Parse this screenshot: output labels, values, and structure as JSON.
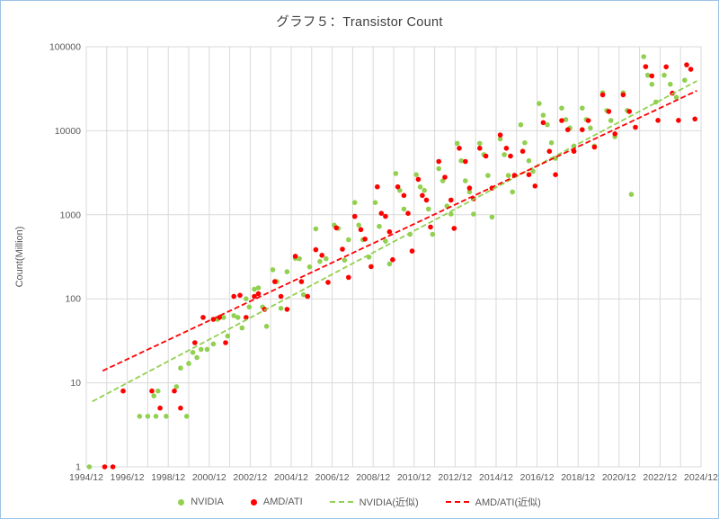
{
  "chart_data": {
    "type": "scatter",
    "title": "グラフ５：Transistor Count",
    "ylabel": "Count(Million)",
    "y_scale": "log10",
    "ylim": [
      1,
      100000
    ],
    "y_ticks": [
      "1",
      "10",
      "100",
      "1000",
      "10000",
      "100000"
    ],
    "x_ticks": [
      "1994/12",
      "1996/12",
      "1998/12",
      "2000/12",
      "2002/12",
      "2004/12",
      "2006/12",
      "2008/12",
      "2010/12",
      "2012/12",
      "2014/12",
      "2016/12",
      "2018/12",
      "2020/12",
      "2022/12",
      "2024/12"
    ],
    "x_range_years_since_1994_12": [
      0,
      30
    ],
    "grid": {
      "color": "#D9D9D9",
      "vertical_every_years": 1,
      "horizontal": "decades"
    },
    "legend_position": "bottom",
    "series": [
      {
        "key": "nvidia",
        "name": "NVIDIA",
        "type": "scatter",
        "color": "#92D050",
        "points": [
          [
            0.15,
            1
          ],
          [
            2.6,
            4
          ],
          [
            3.0,
            4
          ],
          [
            3.4,
            4
          ],
          [
            3.9,
            4
          ],
          [
            4.9,
            4
          ],
          [
            3.3,
            7
          ],
          [
            3.5,
            8
          ],
          [
            4.4,
            9
          ],
          [
            4.6,
            15
          ],
          [
            5.0,
            17
          ],
          [
            5.2,
            23
          ],
          [
            5.4,
            20
          ],
          [
            5.6,
            25
          ],
          [
            5.9,
            25
          ],
          [
            6.2,
            29
          ],
          [
            6.4,
            57
          ],
          [
            6.7,
            60
          ],
          [
            6.9,
            36
          ],
          [
            7.2,
            63
          ],
          [
            7.4,
            60
          ],
          [
            7.6,
            45
          ],
          [
            7.8,
            100
          ],
          [
            7.95,
            80
          ],
          [
            8.2,
            130
          ],
          [
            8.4,
            135
          ],
          [
            8.6,
            80
          ],
          [
            8.8,
            47
          ],
          [
            9.1,
            222
          ],
          [
            9.3,
            160
          ],
          [
            9.5,
            77
          ],
          [
            9.8,
            210
          ],
          [
            10.2,
            303
          ],
          [
            10.4,
            300
          ],
          [
            10.6,
            112
          ],
          [
            10.9,
            240
          ],
          [
            11.2,
            681
          ],
          [
            11.4,
            278
          ],
          [
            11.7,
            300
          ],
          [
            12.1,
            754
          ],
          [
            12.3,
            690
          ],
          [
            12.6,
            289
          ],
          [
            12.8,
            505
          ],
          [
            13.1,
            1400
          ],
          [
            13.3,
            754
          ],
          [
            13.5,
            505
          ],
          [
            13.8,
            314
          ],
          [
            14.1,
            1400
          ],
          [
            14.3,
            727
          ],
          [
            14.6,
            486
          ],
          [
            14.8,
            260
          ],
          [
            15.1,
            3100
          ],
          [
            15.3,
            1950
          ],
          [
            15.5,
            1170
          ],
          [
            15.8,
            585
          ],
          [
            16.1,
            3000
          ],
          [
            16.3,
            2150
          ],
          [
            16.5,
            1950
          ],
          [
            16.7,
            1170
          ],
          [
            16.9,
            585
          ],
          [
            17.2,
            3540
          ],
          [
            17.4,
            2540
          ],
          [
            17.6,
            1270
          ],
          [
            17.8,
            1020
          ],
          [
            18.1,
            7080
          ],
          [
            18.3,
            4400
          ],
          [
            18.5,
            2540
          ],
          [
            18.7,
            1870
          ],
          [
            18.9,
            1020
          ],
          [
            19.2,
            7080
          ],
          [
            19.4,
            5200
          ],
          [
            19.6,
            2940
          ],
          [
            19.8,
            940
          ],
          [
            20.2,
            8000
          ],
          [
            20.4,
            5200
          ],
          [
            20.6,
            2940
          ],
          [
            20.8,
            1870
          ],
          [
            21.2,
            11800
          ],
          [
            21.4,
            7200
          ],
          [
            21.6,
            4400
          ],
          [
            21.8,
            3300
          ],
          [
            22.1,
            21100
          ],
          [
            22.3,
            15300
          ],
          [
            22.5,
            11800
          ],
          [
            22.7,
            7200
          ],
          [
            22.9,
            4700
          ],
          [
            23.2,
            18600
          ],
          [
            23.4,
            13600
          ],
          [
            23.6,
            10800
          ],
          [
            23.8,
            6600
          ],
          [
            24.2,
            18600
          ],
          [
            24.4,
            13600
          ],
          [
            24.6,
            10800
          ],
          [
            24.8,
            6600
          ],
          [
            25.2,
            28300
          ],
          [
            25.4,
            17400
          ],
          [
            25.6,
            13250
          ],
          [
            25.8,
            8500
          ],
          [
            26.2,
            28300
          ],
          [
            26.4,
            17400
          ],
          [
            26.6,
            1750
          ],
          [
            27.2,
            76300
          ],
          [
            27.4,
            45900
          ],
          [
            27.6,
            35800
          ],
          [
            27.8,
            22000
          ],
          [
            28.2,
            45900
          ],
          [
            28.5,
            35800
          ],
          [
            28.8,
            25000
          ],
          [
            29.2,
            40000
          ]
        ]
      },
      {
        "key": "amd-ati",
        "name": "AMD/ATI",
        "type": "scatter",
        "color": "#FF0000",
        "points": [
          [
            0.9,
            1
          ],
          [
            1.3,
            1
          ],
          [
            1.8,
            8
          ],
          [
            3.2,
            8
          ],
          [
            3.6,
            5
          ],
          [
            4.3,
            8
          ],
          [
            4.6,
            5
          ],
          [
            5.3,
            30
          ],
          [
            5.7,
            60
          ],
          [
            6.2,
            57
          ],
          [
            6.5,
            60
          ],
          [
            6.8,
            30
          ],
          [
            7.2,
            107
          ],
          [
            7.5,
            110
          ],
          [
            7.8,
            60
          ],
          [
            8.2,
            107
          ],
          [
            8.4,
            115
          ],
          [
            8.7,
            75
          ],
          [
            9.2,
            160
          ],
          [
            9.5,
            107
          ],
          [
            9.8,
            75
          ],
          [
            10.2,
            321
          ],
          [
            10.5,
            160
          ],
          [
            10.8,
            107
          ],
          [
            11.2,
            384
          ],
          [
            11.5,
            330
          ],
          [
            11.8,
            157
          ],
          [
            12.2,
            700
          ],
          [
            12.5,
            390
          ],
          [
            12.8,
            180
          ],
          [
            13.1,
            956
          ],
          [
            13.4,
            666
          ],
          [
            13.6,
            514
          ],
          [
            13.9,
            242
          ],
          [
            14.2,
            2154
          ],
          [
            14.4,
            1040
          ],
          [
            14.6,
            959
          ],
          [
            14.8,
            627
          ],
          [
            14.95,
            292
          ],
          [
            15.2,
            2154
          ],
          [
            15.5,
            1700
          ],
          [
            15.7,
            1040
          ],
          [
            15.9,
            370
          ],
          [
            16.2,
            2640
          ],
          [
            16.4,
            1700
          ],
          [
            16.6,
            1500
          ],
          [
            16.8,
            715
          ],
          [
            17.2,
            4313
          ],
          [
            17.5,
            2800
          ],
          [
            17.8,
            1500
          ],
          [
            17.95,
            690
          ],
          [
            18.2,
            6200
          ],
          [
            18.5,
            4313
          ],
          [
            18.7,
            2080
          ],
          [
            18.9,
            1550
          ],
          [
            19.2,
            6200
          ],
          [
            19.5,
            5000
          ],
          [
            19.8,
            2080
          ],
          [
            20.2,
            8900
          ],
          [
            20.5,
            6200
          ],
          [
            20.7,
            5000
          ],
          [
            20.9,
            2950
          ],
          [
            21.3,
            5700
          ],
          [
            21.6,
            3000
          ],
          [
            21.9,
            2200
          ],
          [
            22.3,
            12500
          ],
          [
            22.6,
            5700
          ],
          [
            22.9,
            3000
          ],
          [
            23.2,
            13230
          ],
          [
            23.5,
            10300
          ],
          [
            23.8,
            5700
          ],
          [
            24.2,
            10300
          ],
          [
            24.5,
            13230
          ],
          [
            24.8,
            6400
          ],
          [
            25.2,
            26800
          ],
          [
            25.5,
            17000
          ],
          [
            25.8,
            9200
          ],
          [
            26.2,
            26800
          ],
          [
            26.5,
            17000
          ],
          [
            26.8,
            11000
          ],
          [
            27.3,
            58000
          ],
          [
            27.6,
            45000
          ],
          [
            27.9,
            13300
          ],
          [
            28.3,
            57700
          ],
          [
            28.6,
            28000
          ],
          [
            28.9,
            13300
          ],
          [
            29.3,
            61000
          ],
          [
            29.5,
            54000
          ],
          [
            29.7,
            13800
          ]
        ]
      },
      {
        "key": "nvidia-trend",
        "name": "NVIDIA(近似)",
        "type": "trendline",
        "color": "#92D050",
        "dash": true,
        "log10_intercept": 0.74,
        "log10_slope": 0.1293,
        "t_start": 0.3,
        "t_end": 29.8
      },
      {
        "key": "amd-ati-trend",
        "name": "AMD/ATI(近似)",
        "type": "trendline",
        "color": "#FF0000",
        "dash": true,
        "log10_intercept": 1.05,
        "log10_slope": 0.115,
        "t_start": 0.8,
        "t_end": 29.8
      }
    ]
  }
}
